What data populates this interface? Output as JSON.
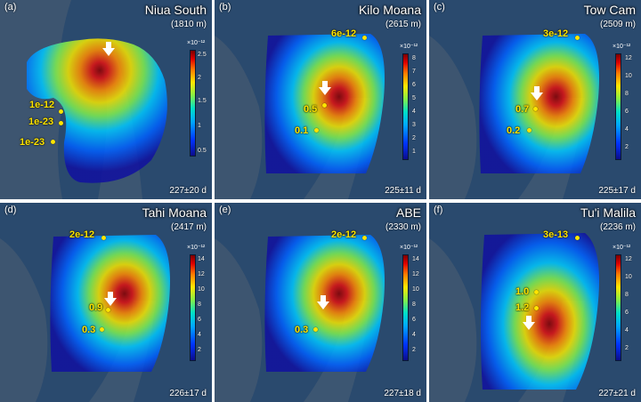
{
  "colorbar": {
    "exponent": "×10⁻¹²"
  },
  "colors": {
    "label": "#ffe500",
    "arrow": "#ffffff",
    "seafloor": "#27476a"
  },
  "panels": [
    {
      "letter": "(a)",
      "site": "Niua South",
      "depth": "(1810 m)",
      "duration": "227±20 d",
      "ticks": [
        "2.5",
        "2",
        "1.5",
        "1",
        "0.5"
      ],
      "labels": [
        "1e-12",
        "1e-23",
        "1e-23"
      ]
    },
    {
      "letter": "(b)",
      "site": "Kilo Moana",
      "depth": "(2615 m)",
      "duration": "225±11 d",
      "ticks": [
        "8",
        "7",
        "6",
        "5",
        "4",
        "3",
        "2",
        "1"
      ],
      "labels": [
        "6e-12",
        "0.5",
        "0.1"
      ]
    },
    {
      "letter": "(c)",
      "site": "Tow Cam",
      "depth": "(2509 m)",
      "duration": "225±17 d",
      "ticks": [
        "12",
        "10",
        "8",
        "6",
        "4",
        "2"
      ],
      "labels": [
        "3e-12",
        "0.7",
        "0.2"
      ]
    },
    {
      "letter": "(d)",
      "site": "Tahi Moana",
      "depth": "(2417 m)",
      "duration": "226±17 d",
      "ticks": [
        "14",
        "12",
        "10",
        "8",
        "6",
        "4",
        "2"
      ],
      "labels": [
        "2e-12",
        "0.9",
        "0.3"
      ]
    },
    {
      "letter": "(e)",
      "site": "ABE",
      "depth": "(2330 m)",
      "duration": "227±18 d",
      "ticks": [
        "14",
        "12",
        "10",
        "8",
        "6",
        "4",
        "2"
      ],
      "labels": [
        "2e-12",
        "0.3"
      ]
    },
    {
      "letter": "(f)",
      "site": "Tu'i Malila",
      "depth": "(2236 m)",
      "duration": "227±21 d",
      "ticks": [
        "12",
        "10",
        "8",
        "6",
        "4",
        "2"
      ],
      "labels": [
        "3e-13",
        "1.0",
        "1.2"
      ]
    }
  ]
}
